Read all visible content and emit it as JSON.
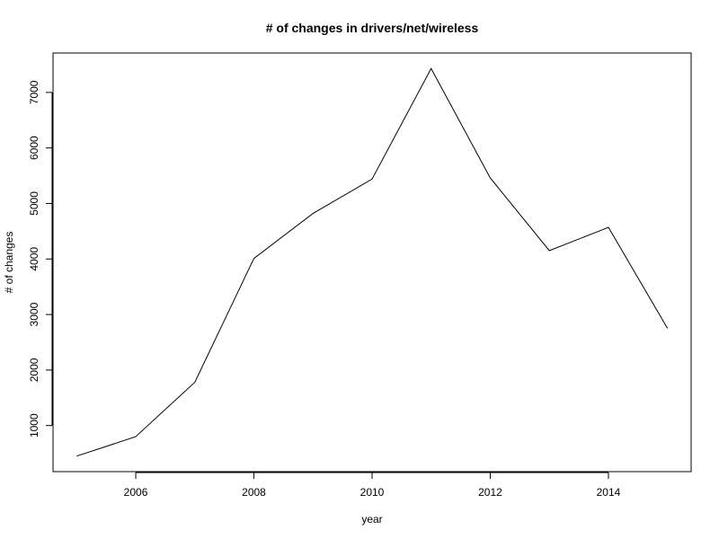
{
  "chart_data": {
    "type": "line",
    "title": "# of changes in drivers/net/wireless",
    "xlabel": "year",
    "ylabel": "# of changes",
    "x": [
      2005,
      2006,
      2007,
      2008,
      2009,
      2010,
      2011,
      2012,
      2013,
      2014,
      2015
    ],
    "series": [
      {
        "values": [
          450,
          800,
          1780,
          4010,
          4820,
          5440,
          7430,
          5460,
          4150,
          4570,
          2750
        ]
      }
    ],
    "x_ticks": [
      2006,
      2008,
      2010,
      2012,
      2014
    ],
    "y_ticks": [
      1000,
      2000,
      3000,
      4000,
      5000,
      6000,
      7000
    ],
    "xlim": [
      2004.6,
      2015.4
    ],
    "ylim": [
      170,
      7710
    ],
    "grid": false,
    "line_color": "#000000"
  }
}
